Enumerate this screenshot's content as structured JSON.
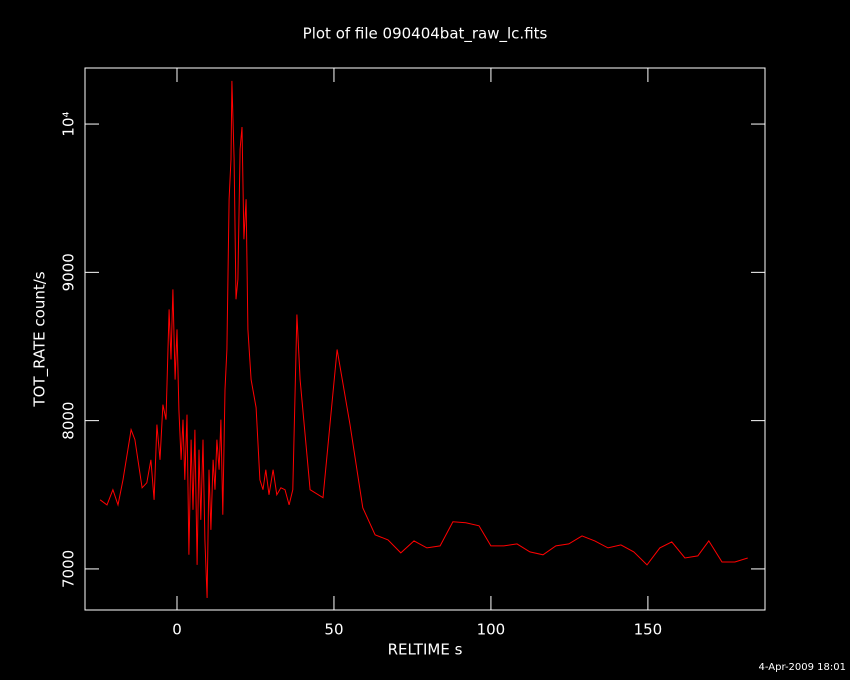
{
  "chart_data": {
    "type": "line",
    "title": "Plot of file 090404bat_raw_lc.fits",
    "x_label": "RELTIME  s",
    "y_label": "TOT_RATE  count/s",
    "timestamp": "4-Apr-2009 18:01",
    "xlim": [
      -29.3,
      187.3
    ],
    "ylim": [
      6723,
      10378
    ],
    "xticks": [
      0,
      50,
      100,
      150
    ],
    "yticks": [
      7000,
      8000,
      9000,
      {
        "value": 10000,
        "label": "10⁴"
      }
    ],
    "series": [
      {
        "color": "#ff0000",
        "x": [
          -24.5,
          -22.3,
          -20.4,
          -18.8,
          -17.2,
          -14.6,
          -13.4,
          -11.1,
          -9.6,
          -8.3,
          -7.3,
          -6.4,
          -5.4,
          -4.5,
          -3.5,
          -2.5,
          -1.9,
          -1.3,
          -0.6,
          0,
          0.6,
          1.3,
          1.9,
          2.5,
          3.2,
          3.8,
          4.5,
          5.1,
          5.7,
          6.4,
          7.0,
          7.6,
          8.3,
          8.9,
          9.6,
          10.2,
          10.8,
          11.5,
          12.1,
          12.7,
          13.4,
          14.0,
          14.6,
          15.3,
          15.9,
          16.6,
          17.2,
          17.5,
          18.2,
          18.8,
          19.4,
          20.1,
          20.7,
          21.3,
          22.0,
          22.6,
          23.6,
          25.2,
          26.4,
          27.4,
          28.3,
          29.3,
          30.6,
          31.8,
          33.1,
          34.4,
          35.7,
          36.9,
          38.2,
          39.2,
          42.4,
          46.5,
          51.0,
          55.1,
          59.2,
          63.1,
          67.2,
          71.3,
          75.5,
          79.6,
          83.8,
          87.9,
          92.0,
          96.2,
          100.0,
          104.1,
          108.3,
          112.4,
          116.6,
          120.7,
          124.8,
          129.0,
          133.1,
          137.3,
          141.4,
          145.5,
          149.7,
          153.8,
          157.6,
          161.8,
          165.9,
          169.4,
          173.6,
          177.7,
          181.8
        ],
        "values": [
          7466,
          7432,
          7534,
          7432,
          7601,
          7939,
          7872,
          7547,
          7581,
          7736,
          7466,
          7973,
          7736,
          8108,
          8007,
          8750,
          8412,
          8885,
          8277,
          8615,
          8074,
          7736,
          8007,
          7601,
          8041,
          7095,
          7872,
          7399,
          7939,
          7027,
          7804,
          7331,
          7872,
          7196,
          6804,
          7669,
          7264,
          7736,
          7534,
          7872,
          7669,
          8007,
          7365,
          8209,
          8480,
          9493,
          9764,
          10291,
          9764,
          8818,
          8953,
          9831,
          9980,
          9223,
          9493,
          8615,
          8277,
          8088,
          7601,
          7534,
          7669,
          7500,
          7669,
          7500,
          7547,
          7534,
          7432,
          7534,
          8716,
          8277,
          7534,
          7480,
          8480,
          7973,
          7412,
          7230,
          7196,
          7108,
          7189,
          7142,
          7155,
          7318,
          7311,
          7291,
          7155,
          7155,
          7169,
          7115,
          7095,
          7155,
          7169,
          7223,
          7189,
          7142,
          7162,
          7115,
          7027,
          7142,
          7182,
          7074,
          7088,
          7189,
          7047,
          7047,
          7074
        ]
      }
    ]
  }
}
